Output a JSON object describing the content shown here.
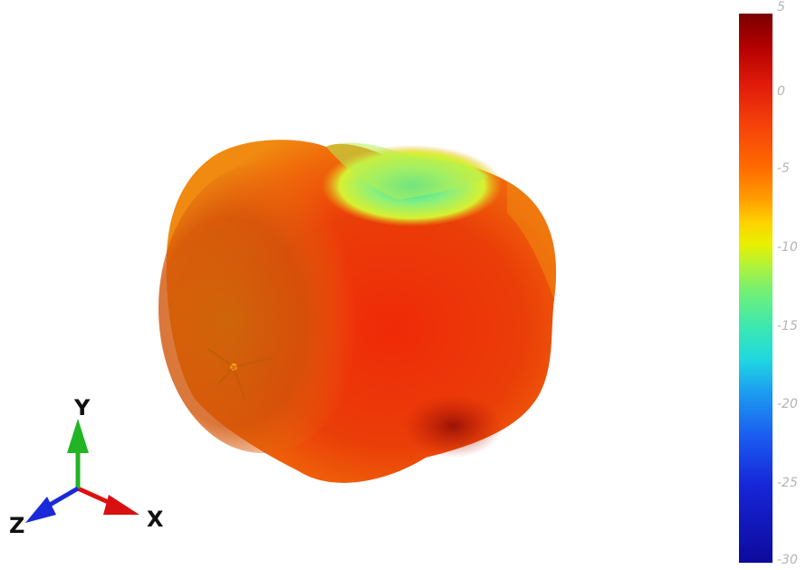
{
  "colorbar": {
    "ticks": [
      "5",
      "0",
      "-5",
      "-10",
      "-15",
      "-20",
      "-25",
      "-30"
    ],
    "min": -30,
    "max": 5
  },
  "axes": {
    "x_label": "X",
    "y_label": "Y",
    "z_label": "Z",
    "colors": {
      "x": "#e01010",
      "y": "#22b422",
      "z": "#1a2ad8"
    }
  }
}
